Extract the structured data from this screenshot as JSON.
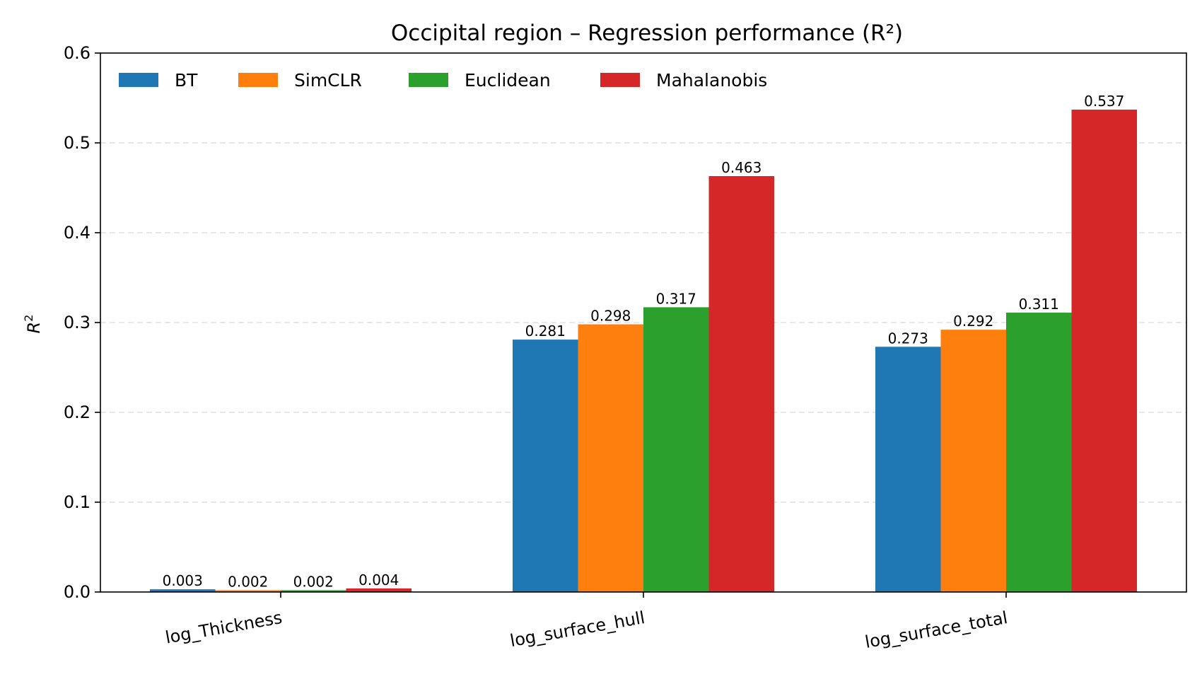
{
  "chart_data": {
    "type": "bar",
    "title": "Occipital region – Regression performance (R²)",
    "xlabel": "",
    "ylabel": "R",
    "ylabel_superscript": "2",
    "ylim": [
      0,
      0.6
    ],
    "yticks": [
      "0.0",
      "0.1",
      "0.2",
      "0.3",
      "0.4",
      "0.5",
      "0.6"
    ],
    "ytick_values": [
      0.0,
      0.1,
      0.2,
      0.3,
      0.4,
      0.5,
      0.6
    ],
    "grid": "y-dashed",
    "legend_position": "top-left",
    "categories": [
      "log_Thickness",
      "log_surface_hull",
      "log_surface_total"
    ],
    "series": [
      {
        "name": "BT",
        "color": "#1f77b4",
        "values": [
          0.003,
          0.281,
          0.273
        ],
        "labels": [
          "0.003",
          "0.281",
          "0.273"
        ]
      },
      {
        "name": "SimCLR",
        "color": "#ff7f0e",
        "values": [
          0.002,
          0.298,
          0.292
        ],
        "labels": [
          "0.002",
          "0.298",
          "0.292"
        ]
      },
      {
        "name": "Euclidean",
        "color": "#2ca02c",
        "values": [
          0.002,
          0.317,
          0.311
        ],
        "labels": [
          "0.002",
          "0.317",
          "0.311"
        ]
      },
      {
        "name": "Mahalanobis",
        "color": "#d62728",
        "values": [
          0.004,
          0.463,
          0.537
        ],
        "labels": [
          "0.004",
          "0.463",
          "0.537"
        ]
      }
    ]
  }
}
